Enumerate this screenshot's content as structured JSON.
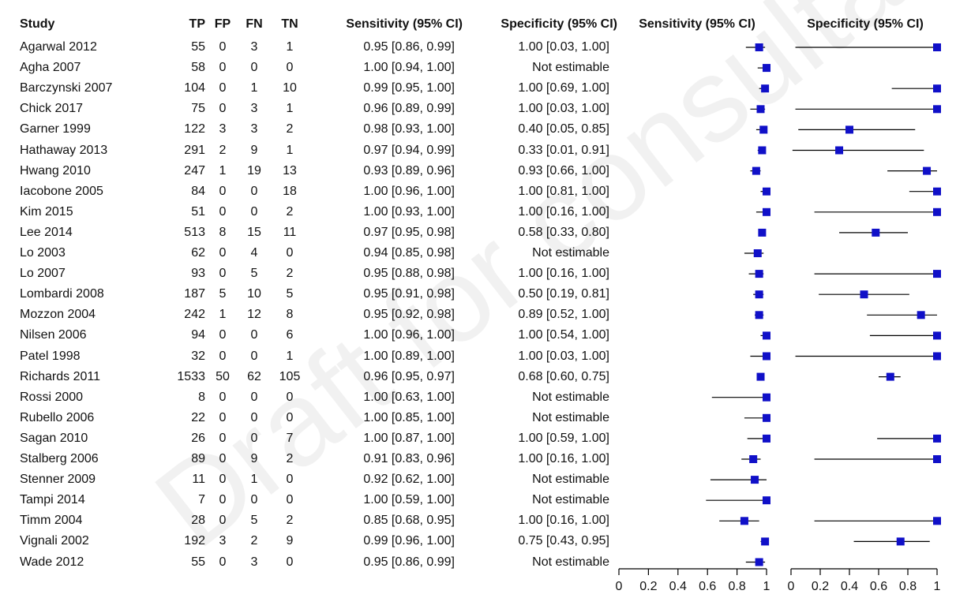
{
  "watermark": "Draft for consultation",
  "chart_data": {
    "type": "table",
    "columns": [
      "Study",
      "TP",
      "FP",
      "FN",
      "TN",
      "Sensitivity (95% CI)",
      "Specificity (95% CI)"
    ],
    "plot_titles": [
      "Sensitivity (95% CI)",
      "Specificity (95% CI)"
    ],
    "plot_axis": {
      "range": [
        0,
        1
      ],
      "ticks": [
        "0",
        "0.2",
        "0.4",
        "0.6",
        "0.8",
        "1"
      ]
    },
    "colors": {
      "marker": "#1010c8",
      "line": "#000000"
    },
    "rows": [
      {
        "study": "Agarwal 2012",
        "tp": "55",
        "fp": "0",
        "fn": "3",
        "tn": "1",
        "sens_text": "0.95 [0.86, 0.99]",
        "spec_text": "1.00 [0.03, 1.00]",
        "sens": [
          0.95,
          0.86,
          0.99
        ],
        "spec": [
          1.0,
          0.03,
          1.0
        ]
      },
      {
        "study": "Agha 2007",
        "tp": "58",
        "fp": "0",
        "fn": "0",
        "tn": "0",
        "sens_text": "1.00 [0.94, 1.00]",
        "spec_text": "Not estimable",
        "sens": [
          1.0,
          0.94,
          1.0
        ],
        "spec": null
      },
      {
        "study": "Barczynski 2007",
        "tp": "104",
        "fp": "0",
        "fn": "1",
        "tn": "10",
        "sens_text": "0.99 [0.95, 1.00]",
        "spec_text": "1.00 [0.69, 1.00]",
        "sens": [
          0.99,
          0.95,
          1.0
        ],
        "spec": [
          1.0,
          0.69,
          1.0
        ]
      },
      {
        "study": "Chick 2017",
        "tp": "75",
        "fp": "0",
        "fn": "3",
        "tn": "1",
        "sens_text": "0.96 [0.89, 0.99]",
        "spec_text": "1.00 [0.03, 1.00]",
        "sens": [
          0.96,
          0.89,
          0.99
        ],
        "spec": [
          1.0,
          0.03,
          1.0
        ]
      },
      {
        "study": "Garner 1999",
        "tp": "122",
        "fp": "3",
        "fn": "3",
        "tn": "2",
        "sens_text": "0.98 [0.93, 1.00]",
        "spec_text": "0.40 [0.05, 0.85]",
        "sens": [
          0.98,
          0.93,
          1.0
        ],
        "spec": [
          0.4,
          0.05,
          0.85
        ]
      },
      {
        "study": "Hathaway 2013",
        "tp": "291",
        "fp": "2",
        "fn": "9",
        "tn": "1",
        "sens_text": "0.97 [0.94, 0.99]",
        "spec_text": "0.33 [0.01, 0.91]",
        "sens": [
          0.97,
          0.94,
          0.99
        ],
        "spec": [
          0.33,
          0.01,
          0.91
        ]
      },
      {
        "study": "Hwang 2010",
        "tp": "247",
        "fp": "1",
        "fn": "19",
        "tn": "13",
        "sens_text": "0.93 [0.89, 0.96]",
        "spec_text": "0.93 [0.66, 1.00]",
        "sens": [
          0.93,
          0.89,
          0.96
        ],
        "spec": [
          0.93,
          0.66,
          1.0
        ]
      },
      {
        "study": "Iacobone 2005",
        "tp": "84",
        "fp": "0",
        "fn": "0",
        "tn": "18",
        "sens_text": "1.00 [0.96, 1.00]",
        "spec_text": "1.00 [0.81, 1.00]",
        "sens": [
          1.0,
          0.96,
          1.0
        ],
        "spec": [
          1.0,
          0.81,
          1.0
        ]
      },
      {
        "study": "Kim 2015",
        "tp": "51",
        "fp": "0",
        "fn": "0",
        "tn": "2",
        "sens_text": "1.00 [0.93, 1.00]",
        "spec_text": "1.00 [0.16, 1.00]",
        "sens": [
          1.0,
          0.93,
          1.0
        ],
        "spec": [
          1.0,
          0.16,
          1.0
        ]
      },
      {
        "study": "Lee 2014",
        "tp": "513",
        "fp": "8",
        "fn": "15",
        "tn": "11",
        "sens_text": "0.97 [0.95, 0.98]",
        "spec_text": "0.58 [0.33, 0.80]",
        "sens": [
          0.97,
          0.95,
          0.98
        ],
        "spec": [
          0.58,
          0.33,
          0.8
        ]
      },
      {
        "study": "Lo 2003",
        "tp": "62",
        "fp": "0",
        "fn": "4",
        "tn": "0",
        "sens_text": "0.94 [0.85, 0.98]",
        "spec_text": "Not estimable",
        "sens": [
          0.94,
          0.85,
          0.98
        ],
        "spec": null
      },
      {
        "study": "Lo 2007",
        "tp": "93",
        "fp": "0",
        "fn": "5",
        "tn": "2",
        "sens_text": "0.95 [0.88, 0.98]",
        "spec_text": "1.00 [0.16, 1.00]",
        "sens": [
          0.95,
          0.88,
          0.98
        ],
        "spec": [
          1.0,
          0.16,
          1.0
        ]
      },
      {
        "study": "Lombardi 2008",
        "tp": "187",
        "fp": "5",
        "fn": "10",
        "tn": "5",
        "sens_text": "0.95 [0.91, 0.98]",
        "spec_text": "0.50 [0.19, 0.81]",
        "sens": [
          0.95,
          0.91,
          0.98
        ],
        "spec": [
          0.5,
          0.19,
          0.81
        ]
      },
      {
        "study": "Mozzon 2004",
        "tp": "242",
        "fp": "1",
        "fn": "12",
        "tn": "8",
        "sens_text": "0.95 [0.92, 0.98]",
        "spec_text": "0.89 [0.52, 1.00]",
        "sens": [
          0.95,
          0.92,
          0.98
        ],
        "spec": [
          0.89,
          0.52,
          1.0
        ]
      },
      {
        "study": "Nilsen 2006",
        "tp": "94",
        "fp": "0",
        "fn": "0",
        "tn": "6",
        "sens_text": "1.00 [0.96, 1.00]",
        "spec_text": "1.00 [0.54, 1.00]",
        "sens": [
          1.0,
          0.96,
          1.0
        ],
        "spec": [
          1.0,
          0.54,
          1.0
        ]
      },
      {
        "study": "Patel 1998",
        "tp": "32",
        "fp": "0",
        "fn": "0",
        "tn": "1",
        "sens_text": "1.00 [0.89, 1.00]",
        "spec_text": "1.00 [0.03, 1.00]",
        "sens": [
          1.0,
          0.89,
          1.0
        ],
        "spec": [
          1.0,
          0.03,
          1.0
        ]
      },
      {
        "study": "Richards 2011",
        "tp": "1533",
        "fp": "50",
        "fn": "62",
        "tn": "105",
        "sens_text": "0.96 [0.95, 0.97]",
        "spec_text": "0.68 [0.60, 0.75]",
        "sens": [
          0.96,
          0.95,
          0.97
        ],
        "spec": [
          0.68,
          0.6,
          0.75
        ]
      },
      {
        "study": "Rossi 2000",
        "tp": "8",
        "fp": "0",
        "fn": "0",
        "tn": "0",
        "sens_text": "1.00 [0.63, 1.00]",
        "spec_text": "Not estimable",
        "sens": [
          1.0,
          0.63,
          1.0
        ],
        "spec": null
      },
      {
        "study": "Rubello 2006",
        "tp": "22",
        "fp": "0",
        "fn": "0",
        "tn": "0",
        "sens_text": "1.00 [0.85, 1.00]",
        "spec_text": "Not estimable",
        "sens": [
          1.0,
          0.85,
          1.0
        ],
        "spec": null
      },
      {
        "study": "Sagan 2010",
        "tp": "26",
        "fp": "0",
        "fn": "0",
        "tn": "7",
        "sens_text": "1.00 [0.87, 1.00]",
        "spec_text": "1.00 [0.59, 1.00]",
        "sens": [
          1.0,
          0.87,
          1.0
        ],
        "spec": [
          1.0,
          0.59,
          1.0
        ]
      },
      {
        "study": "Stalberg 2006",
        "tp": "89",
        "fp": "0",
        "fn": "9",
        "tn": "2",
        "sens_text": "0.91 [0.83, 0.96]",
        "spec_text": "1.00 [0.16, 1.00]",
        "sens": [
          0.91,
          0.83,
          0.96
        ],
        "spec": [
          1.0,
          0.16,
          1.0
        ]
      },
      {
        "study": "Stenner 2009",
        "tp": "11",
        "fp": "0",
        "fn": "1",
        "tn": "0",
        "sens_text": "0.92 [0.62, 1.00]",
        "spec_text": "Not estimable",
        "sens": [
          0.92,
          0.62,
          1.0
        ],
        "spec": null
      },
      {
        "study": "Tampi 2014",
        "tp": "7",
        "fp": "0",
        "fn": "0",
        "tn": "0",
        "sens_text": "1.00 [0.59, 1.00]",
        "spec_text": "Not estimable",
        "sens": [
          1.0,
          0.59,
          1.0
        ],
        "spec": null
      },
      {
        "study": "Timm 2004",
        "tp": "28",
        "fp": "0",
        "fn": "5",
        "tn": "2",
        "sens_text": "0.85 [0.68, 0.95]",
        "spec_text": "1.00 [0.16, 1.00]",
        "sens": [
          0.85,
          0.68,
          0.95
        ],
        "spec": [
          1.0,
          0.16,
          1.0
        ]
      },
      {
        "study": "Vignali 2002",
        "tp": "192",
        "fp": "3",
        "fn": "2",
        "tn": "9",
        "sens_text": "0.99 [0.96, 1.00]",
        "spec_text": "0.75 [0.43, 0.95]",
        "sens": [
          0.99,
          0.96,
          1.0
        ],
        "spec": [
          0.75,
          0.43,
          0.95
        ]
      },
      {
        "study": "Wade 2012",
        "tp": "55",
        "fp": "0",
        "fn": "3",
        "tn": "0",
        "sens_text": "0.95 [0.86, 0.99]",
        "spec_text": "Not estimable",
        "sens": [
          0.95,
          0.86,
          0.99
        ],
        "spec": null
      }
    ]
  }
}
